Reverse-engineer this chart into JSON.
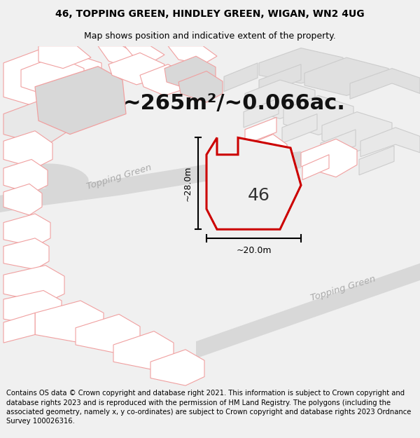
{
  "title_line1": "46, TOPPING GREEN, HINDLEY GREEN, WIGAN, WN2 4UG",
  "title_line2": "Map shows position and indicative extent of the property.",
  "area_label": "~265m²/~0.066ac.",
  "property_number": "46",
  "dim_height": "~28.0m",
  "dim_width": "~20.0m",
  "street_label1": "Topping Green",
  "street_label2": "Topping Green",
  "footer_text": "Contains OS data © Crown copyright and database right 2021. This information is subject to Crown copyright and database rights 2023 and is reproduced with the permission of HM Land Registry. The polygons (including the associated geometry, namely x, y co-ordinates) are subject to Crown copyright and database rights 2023 Ordnance Survey 100026316.",
  "bg_color": "#f0f0f0",
  "map_bg": "#ffffff",
  "property_fill": "#f0f0f0",
  "property_edge": "#cc0000",
  "road_fill": "#d8d8d8",
  "pink_line_color": "#f0a0a0",
  "gray_fill": "#d8d8d8",
  "dim_color": "#000000",
  "title_fontsize": 10,
  "subtitle_fontsize": 9,
  "area_fontsize": 22,
  "footer_fontsize": 7.2
}
